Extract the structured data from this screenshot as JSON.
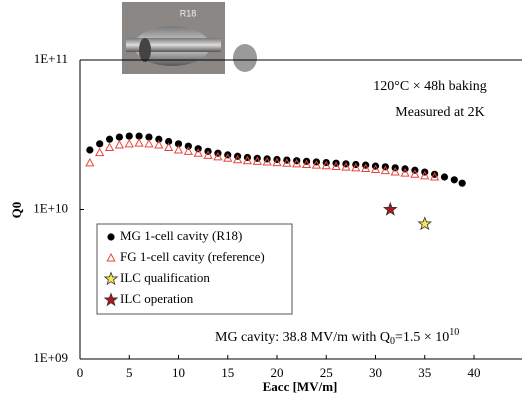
{
  "chart_data": {
    "type": "scatter",
    "image_label": "R18",
    "xlabel": "Eacc [MV/m]",
    "ylabel": "Q0",
    "xlim": [
      0,
      45
    ],
    "xticks": [
      0,
      5,
      10,
      15,
      20,
      25,
      30,
      35,
      40
    ],
    "ylim": [
      1000000000,
      100000000000
    ],
    "log_y": true,
    "yticks": [
      {
        "value": 1000000000,
        "label": "1E+09"
      },
      {
        "value": 10000000000,
        "label": "1E+10"
      },
      {
        "value": 100000000000,
        "label": "1E+11"
      }
    ],
    "annotations": [
      "120°C × 48h baking",
      "Measured at 2K"
    ],
    "result_note": [
      "MG cavity: 38.8 MV/m with Q",
      "0",
      "=1.5 × 10",
      "10"
    ],
    "series": [
      {
        "name": "MG 1-cell cavity (R18)",
        "marker": "circle",
        "color": "#000000",
        "x": [
          1,
          2,
          3,
          4,
          5,
          6,
          7,
          8,
          9,
          10,
          11,
          12,
          13,
          14,
          15,
          16,
          17,
          18,
          19,
          20,
          21,
          22,
          23,
          24,
          25,
          26,
          27,
          28,
          29,
          30,
          31,
          32,
          33,
          34,
          35,
          36,
          37,
          38,
          38.8
        ],
        "values": [
          25000000000,
          27500000000,
          29500000000,
          30500000000,
          31000000000,
          31000000000,
          30500000000,
          29500000000,
          28500000000,
          27500000000,
          26500000000,
          25500000000,
          24500000000,
          23800000000,
          23200000000,
          22700000000,
          22300000000,
          22000000000,
          21800000000,
          21600000000,
          21400000000,
          21200000000,
          21000000000,
          20800000000,
          20600000000,
          20400000000,
          20200000000,
          20000000000,
          19800000000,
          19500000000,
          19300000000,
          19000000000,
          18700000000,
          18300000000,
          17800000000,
          17200000000,
          16500000000,
          15800000000,
          15000000000
        ]
      },
      {
        "name": "FG 1-cell cavity (reference)",
        "marker": "triangle",
        "color": "#e8463c",
        "x": [
          1,
          2,
          3,
          4,
          5,
          6,
          7,
          8,
          9,
          10,
          11,
          12,
          13,
          14,
          15,
          16,
          17,
          18,
          19,
          20,
          21,
          22,
          23,
          24,
          25,
          26,
          27,
          28,
          29,
          30,
          31,
          32,
          33,
          34,
          35,
          36
        ],
        "values": [
          20500000000,
          24000000000,
          26000000000,
          27000000000,
          27500000000,
          27800000000,
          27500000000,
          27000000000,
          26000000000,
          25000000000,
          24500000000,
          23800000000,
          23000000000,
          22500000000,
          22000000000,
          21500000000,
          21200000000,
          21000000000,
          20800000000,
          20600000000,
          20400000000,
          20200000000,
          20000000000,
          19800000000,
          19600000000,
          19400000000,
          19200000000,
          19000000000,
          18800000000,
          18500000000,
          18200000000,
          17800000000,
          17500000000,
          17200000000,
          16800000000,
          16500000000
        ]
      },
      {
        "name": "ILC qualification",
        "marker": "star",
        "color": "#f5e84a",
        "x": [
          35
        ],
        "values": [
          8000000000
        ]
      },
      {
        "name": "ILC operation",
        "marker": "star",
        "color": "#b0171f",
        "x": [
          31.5
        ],
        "values": [
          10000000000
        ]
      }
    ]
  }
}
